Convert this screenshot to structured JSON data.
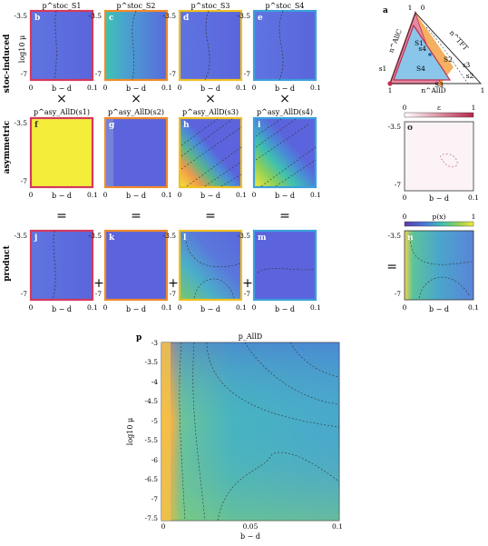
{
  "row_labels": [
    "stoc-induced",
    "asymmetric",
    "product"
  ],
  "axes": {
    "y_label": "log10 μ",
    "x_label": "b − d",
    "small_y_ticks": [
      "-3.5",
      "-7"
    ],
    "small_x_ticks": [
      "0",
      "0.1"
    ],
    "big_y_ticks": [
      "-3",
      "-3.5",
      "-4",
      "-4.5",
      "-5",
      "-5.5",
      "-6",
      "-6.5",
      "-7",
      "-7.5"
    ],
    "big_x_ticks": [
      "0",
      "0.05",
      "0.1"
    ]
  },
  "operators": {
    "times": "×",
    "equals": "=",
    "plus": "+",
    "eq_row": "="
  },
  "panels": {
    "row1": [
      {
        "letter": "b",
        "title": "p^stoc_S1",
        "border": "#d43a5c"
      },
      {
        "letter": "c",
        "title": "p^stoc_S2",
        "border": "#f08a2a"
      },
      {
        "letter": "d",
        "title": "p^stoc_S3",
        "border": "#f0c020"
      },
      {
        "letter": "e",
        "title": "p^stoc_S4",
        "border": "#3aa0dc"
      }
    ],
    "row2": [
      {
        "letter": "f",
        "title": "p^asy_AllD(s1)",
        "border": "#d43a5c"
      },
      {
        "letter": "g",
        "title": "p^asy_AllD(s2)",
        "border": "#f08a2a"
      },
      {
        "letter": "h",
        "title": "p^asy_AllD(s3)",
        "border": "#f0c020"
      },
      {
        "letter": "i",
        "title": "p^asy_AllD(s4)",
        "border": "#3aa0dc"
      },
      {
        "letter": "o",
        "title": "ε"
      }
    ],
    "row3": [
      {
        "letter": "j",
        "border": "#d43a5c"
      },
      {
        "letter": "k",
        "border": "#f08a2a"
      },
      {
        "letter": "l",
        "border": "#f0c020"
      },
      {
        "letter": "m",
        "border": "#3aa0dc"
      },
      {
        "letter": "n",
        "title": "p(x)"
      }
    ],
    "big": {
      "letter": "p",
      "title": "p_AllD"
    }
  },
  "colorbars": {
    "epsilon": {
      "label": "ε",
      "min": "0",
      "max": "1"
    },
    "px": {
      "label": "p(x)",
      "min": "0",
      "max": "1"
    }
  },
  "simplex": {
    "letter": "a",
    "vertex_labels": [
      "1",
      "0",
      "1",
      "1"
    ],
    "edge_labels": [
      "n^AllC",
      "n^TFT",
      "n^AllD"
    ],
    "region_labels": [
      "S1",
      "S4",
      "S2",
      "S3",
      "S2"
    ],
    "point_labels": [
      "s1",
      "s2",
      "s3",
      "s4"
    ],
    "colors": {
      "pink": "#e58aa3",
      "blue": "#8ac6ea",
      "orange": "#f5b062",
      "dark": "#c0304f"
    }
  }
}
